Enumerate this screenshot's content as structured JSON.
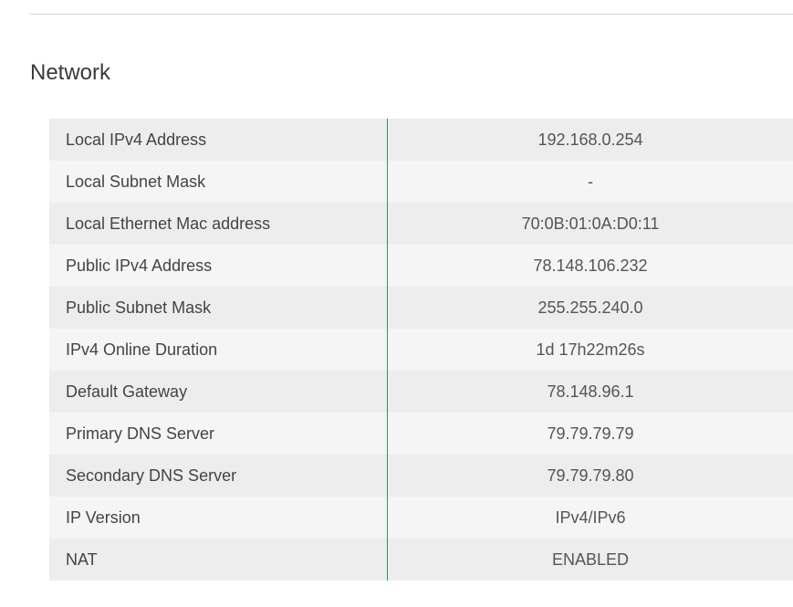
{
  "section": {
    "title": "Network"
  },
  "rows": [
    {
      "label": "Local IPv4 Address",
      "value": "192.168.0.254"
    },
    {
      "label": "Local Subnet Mask",
      "value": "-"
    },
    {
      "label": "Local Ethernet Mac address",
      "value": "70:0B:01:0A:D0:11"
    },
    {
      "label": "Public IPv4 Address",
      "value": "78.148.106.232"
    },
    {
      "label": "Public Subnet Mask",
      "value": "255.255.240.0"
    },
    {
      "label": "IPv4 Online Duration",
      "value": "1d 17h22m26s"
    },
    {
      "label": "Default Gateway",
      "value": "78.148.96.1"
    },
    {
      "label": "Primary DNS Server",
      "value": "79.79.79.79"
    },
    {
      "label": "Secondary DNS Server",
      "value": "79.79.79.80"
    },
    {
      "label": "IP Version",
      "value": "IPv4/IPv6"
    },
    {
      "label": "NAT",
      "value": "ENABLED"
    }
  ],
  "colors": {
    "divider_accent": "#1f9b5a",
    "row_odd": "#ededed",
    "row_even": "#f5f5f5"
  }
}
